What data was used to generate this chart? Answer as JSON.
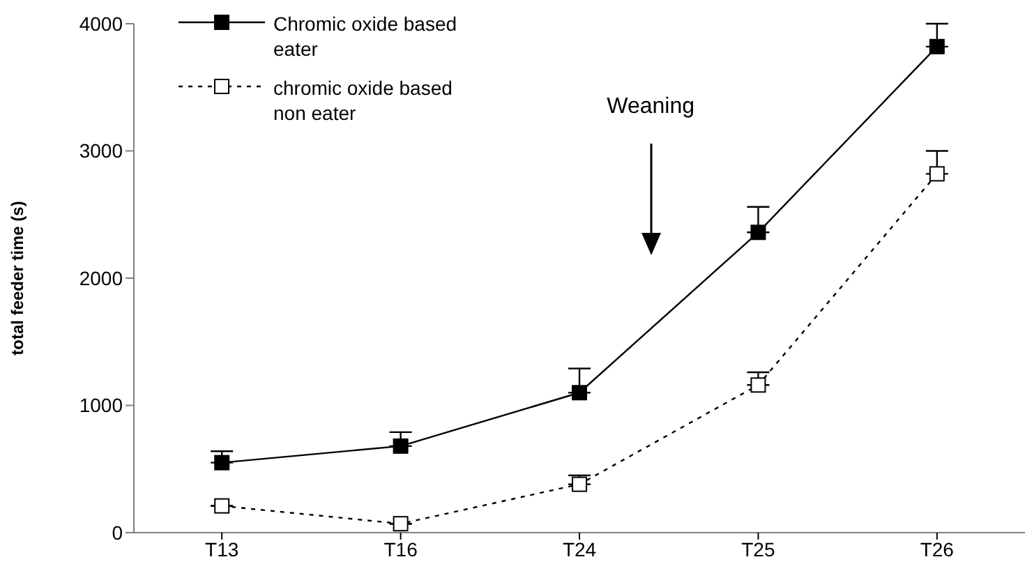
{
  "chart_data": {
    "type": "line",
    "ylabel": "total feeder time (s)",
    "categories": [
      "T13",
      "T16",
      "T24",
      "T25",
      "T26"
    ],
    "series": [
      {
        "name": "Chromic oxide based eater",
        "color": "#000000",
        "marker": "square",
        "line_style": "solid",
        "values": [
          550,
          680,
          1100,
          2360,
          3820
        ],
        "errors": [
          [
            550,
            640
          ],
          [
            680,
            790
          ],
          [
            1100,
            1290
          ],
          [
            2360,
            2560
          ],
          [
            3820,
            4000
          ]
        ]
      },
      {
        "name": "chromic oxide based non eater",
        "color": "#000000",
        "marker": "square",
        "line_style": "dashed",
        "values": [
          210,
          70,
          380,
          1160,
          2820
        ],
        "errors": [
          null,
          null,
          [
            380,
            450
          ],
          [
            1160,
            1260
          ],
          [
            2820,
            3000
          ]
        ]
      }
    ],
    "annotations": [
      "Weaning"
    ],
    "ylim": [
      0,
      4000
    ],
    "yticks": [
      0,
      1000,
      2000,
      3000,
      4000
    ],
    "legend": "top left"
  }
}
